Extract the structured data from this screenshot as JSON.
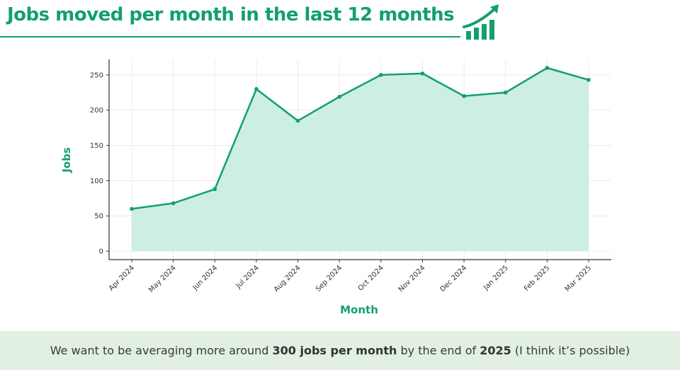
{
  "slide": {
    "title": "Jobs moved per month in the last 12 months",
    "footer": {
      "prefix": "We want to be averaging more around ",
      "bold1": "300 jobs per month",
      "middle": " by the end of ",
      "bold2": "2025",
      "suffix": " (I think it’s possible)"
    },
    "icon": "bar-chart-growth-arrow-icon",
    "colors": {
      "accent": "#12a06b",
      "fill": "#cdeee2",
      "footer_bg": "#e1f0e3"
    }
  },
  "chart_data": {
    "type": "area",
    "title": "",
    "xlabel": "Month",
    "ylabel": "Jobs",
    "categories": [
      "Apr 2024",
      "May 2024",
      "Jun 2024",
      "Jul 2024",
      "Aug 2024",
      "Sep 2024",
      "Oct 2024",
      "Nov 2024",
      "Dec 2024",
      "Jan 2025",
      "Feb 2025",
      "Mar 2025"
    ],
    "values": [
      60,
      68,
      88,
      230,
      185,
      219,
      250,
      252,
      220,
      225,
      260,
      243
    ],
    "ylim": [
      -12,
      272
    ],
    "yticks": [
      0,
      50,
      100,
      150,
      200,
      250
    ],
    "grid": true,
    "legend": "none"
  }
}
